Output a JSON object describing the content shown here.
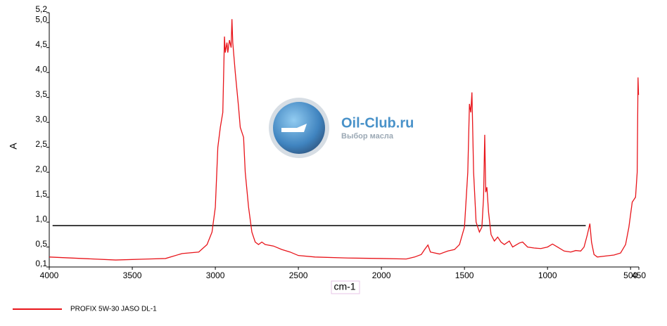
{
  "chart_data": {
    "type": "line",
    "y_label": "A",
    "x_label": "cm-1",
    "xlim": [
      4000,
      450
    ],
    "ylim": [
      0.1,
      5.2
    ],
    "xticks": [
      4000,
      3500,
      3000,
      2500,
      2000,
      1500,
      1000,
      500,
      450
    ],
    "yticks": [
      {
        "value": 0.1,
        "label": "0,1"
      },
      {
        "value": 0.5,
        "label": "0,5"
      },
      {
        "value": 1.0,
        "label": "1,0"
      },
      {
        "value": 1.5,
        "label": "1,5"
      },
      {
        "value": 2.0,
        "label": "2,0"
      },
      {
        "value": 2.5,
        "label": "2,5"
      },
      {
        "value": 3.0,
        "label": "3,0"
      },
      {
        "value": 3.5,
        "label": "3,5"
      },
      {
        "value": 4.0,
        "label": "4,0"
      },
      {
        "value": 4.5,
        "label": "4,5"
      },
      {
        "value": 5.0,
        "label": "5,0"
      },
      {
        "value": 5.2,
        "label": "5,2"
      }
    ],
    "hline": {
      "y": 0.93,
      "x": [
        3980,
        770
      ],
      "color": "#000000"
    },
    "watermark": {
      "title": "Oil-Club.ru",
      "subtitle": "Выбор масла"
    },
    "x": [
      4000,
      3800,
      3600,
      3400,
      3300,
      3200,
      3100,
      3050,
      3020,
      3000,
      2985,
      2970,
      2955,
      2945,
      2940,
      2930,
      2925,
      2915,
      2905,
      2900,
      2895,
      2880,
      2860,
      2850,
      2840,
      2830,
      2820,
      2800,
      2780,
      2760,
      2740,
      2720,
      2700,
      2650,
      2600,
      2550,
      2500,
      2400,
      2200,
      2000,
      1850,
      1800,
      1760,
      1740,
      1720,
      1705,
      1650,
      1600,
      1560,
      1530,
      1500,
      1480,
      1470,
      1462,
      1455,
      1445,
      1430,
      1410,
      1395,
      1385,
      1378,
      1372,
      1365,
      1355,
      1340,
      1320,
      1300,
      1280,
      1260,
      1230,
      1210,
      1170,
      1150,
      1120,
      1080,
      1040,
      1000,
      970,
      940,
      900,
      860,
      830,
      800,
      780,
      760,
      745,
      735,
      720,
      700,
      650,
      600,
      560,
      530,
      510,
      490,
      470,
      460,
      455,
      452
    ],
    "series": [
      {
        "name": "PROFIX 5W-30 JASO DL-1",
        "color": "#e8141a",
        "values": [
          0.3,
          0.27,
          0.24,
          0.26,
          0.27,
          0.37,
          0.4,
          0.55,
          0.8,
          1.3,
          2.5,
          2.9,
          3.2,
          4.72,
          4.4,
          4.6,
          4.4,
          4.65,
          4.5,
          5.07,
          4.6,
          4.0,
          3.3,
          2.9,
          2.8,
          2.7,
          2.0,
          1.3,
          0.8,
          0.6,
          0.55,
          0.6,
          0.55,
          0.52,
          0.45,
          0.4,
          0.33,
          0.3,
          0.28,
          0.27,
          0.26,
          0.3,
          0.35,
          0.45,
          0.54,
          0.4,
          0.36,
          0.42,
          0.45,
          0.55,
          0.9,
          2.0,
          3.37,
          3.2,
          3.6,
          2.0,
          1.0,
          0.8,
          0.9,
          1.5,
          2.75,
          1.6,
          1.7,
          1.2,
          0.75,
          0.62,
          0.7,
          0.6,
          0.55,
          0.62,
          0.5,
          0.58,
          0.6,
          0.5,
          0.48,
          0.47,
          0.5,
          0.56,
          0.5,
          0.42,
          0.4,
          0.43,
          0.42,
          0.5,
          0.75,
          0.97,
          0.6,
          0.35,
          0.3,
          0.32,
          0.34,
          0.38,
          0.55,
          0.9,
          1.4,
          1.5,
          2.0,
          3.9,
          3.55
        ]
      }
    ]
  }
}
